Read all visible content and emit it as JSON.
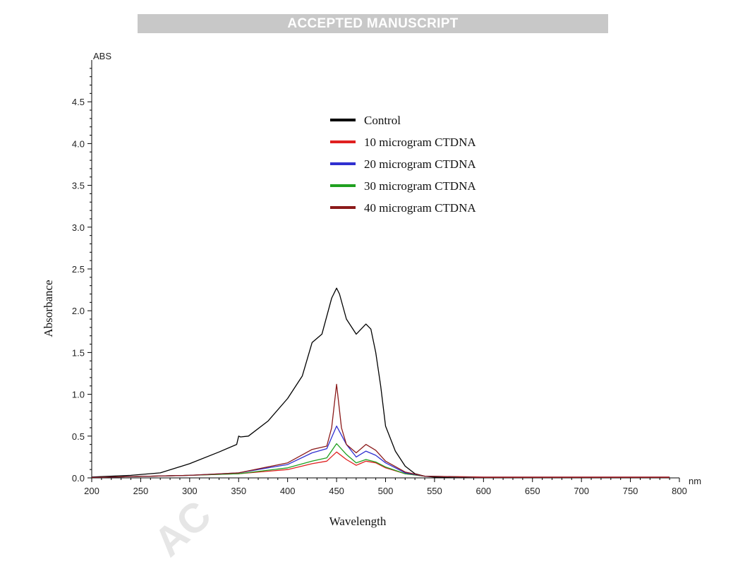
{
  "banner": {
    "text": "ACCEPTED MANUSCRIPT"
  },
  "watermark": {
    "text": "AC"
  },
  "chart_data": {
    "type": "line",
    "title": "",
    "xlabel": "Wavelength",
    "ylabel": "Absorbance",
    "y_unit_label": "ABS",
    "x_unit_label": "nm",
    "xlim": [
      200,
      800
    ],
    "ylim": [
      0,
      5.0
    ],
    "x_ticks": [
      "200",
      "250",
      "300",
      "350",
      "400",
      "450",
      "500",
      "550",
      "600",
      "650",
      "700",
      "750",
      "800"
    ],
    "y_ticks": [
      "0.0",
      "0.5",
      "1.0",
      "1.5",
      "2.0",
      "2.5",
      "3.0",
      "3.5",
      "4.0",
      "4.5"
    ],
    "grid": false,
    "legend_position": "top-center",
    "series": [
      {
        "name": "Control",
        "color": "#000000",
        "x": [
          200,
          240,
          270,
          300,
          330,
          348,
          350,
          352,
          360,
          380,
          400,
          415,
          425,
          435,
          445,
          450,
          453,
          460,
          470,
          480,
          485,
          490,
          495,
          500,
          510,
          520,
          530,
          540,
          550,
          600,
          650,
          700,
          750,
          790
        ],
        "y": [
          0.01,
          0.03,
          0.06,
          0.17,
          0.31,
          0.4,
          0.5,
          0.49,
          0.5,
          0.68,
          0.95,
          1.22,
          1.62,
          1.72,
          2.15,
          2.27,
          2.2,
          1.9,
          1.72,
          1.84,
          1.78,
          1.5,
          1.1,
          0.62,
          0.32,
          0.14,
          0.05,
          0.02,
          0.01,
          0.005,
          0.005,
          0.005,
          0.005,
          0.005
        ]
      },
      {
        "name": "10 microgram CTDNA",
        "color": "#e02020",
        "x": [
          200,
          260,
          300,
          350,
          400,
          425,
          440,
          450,
          460,
          470,
          480,
          490,
          500,
          520,
          540,
          600,
          650,
          700,
          750,
          790
        ],
        "y": [
          0.005,
          0.02,
          0.03,
          0.05,
          0.1,
          0.17,
          0.2,
          0.31,
          0.22,
          0.15,
          0.2,
          0.18,
          0.12,
          0.05,
          0.02,
          0.01,
          0.01,
          0.01,
          0.01,
          0.01
        ]
      },
      {
        "name": "20 microgram CTDNA",
        "color": "#3030d0",
        "x": [
          200,
          260,
          300,
          350,
          400,
          425,
          440,
          450,
          460,
          470,
          480,
          490,
          500,
          520,
          540,
          600,
          650,
          700,
          750,
          790
        ],
        "y": [
          0.005,
          0.02,
          0.03,
          0.06,
          0.16,
          0.3,
          0.35,
          0.62,
          0.4,
          0.25,
          0.32,
          0.27,
          0.18,
          0.06,
          0.02,
          0.005,
          0.005,
          0.005,
          0.005,
          0.005
        ]
      },
      {
        "name": "30 microgram CTDNA",
        "color": "#20a020",
        "x": [
          200,
          260,
          300,
          350,
          400,
          425,
          440,
          450,
          460,
          470,
          480,
          490,
          500,
          520,
          540,
          600,
          650,
          700,
          750,
          790
        ],
        "y": [
          0.005,
          0.02,
          0.03,
          0.05,
          0.12,
          0.2,
          0.24,
          0.41,
          0.28,
          0.18,
          0.22,
          0.19,
          0.13,
          0.05,
          0.02,
          0.005,
          0.005,
          0.005,
          0.005,
          0.005
        ]
      },
      {
        "name": "40 microgram CTDNA",
        "color": "#8b1a1a",
        "x": [
          200,
          260,
          300,
          350,
          400,
          425,
          440,
          445,
          450,
          455,
          460,
          470,
          480,
          490,
          500,
          520,
          540,
          600,
          650,
          700,
          750,
          790
        ],
        "y": [
          0.005,
          0.02,
          0.03,
          0.06,
          0.18,
          0.34,
          0.38,
          0.6,
          1.12,
          0.6,
          0.4,
          0.3,
          0.4,
          0.33,
          0.2,
          0.07,
          0.02,
          0.005,
          0.005,
          0.005,
          0.005,
          0.005
        ]
      }
    ]
  }
}
